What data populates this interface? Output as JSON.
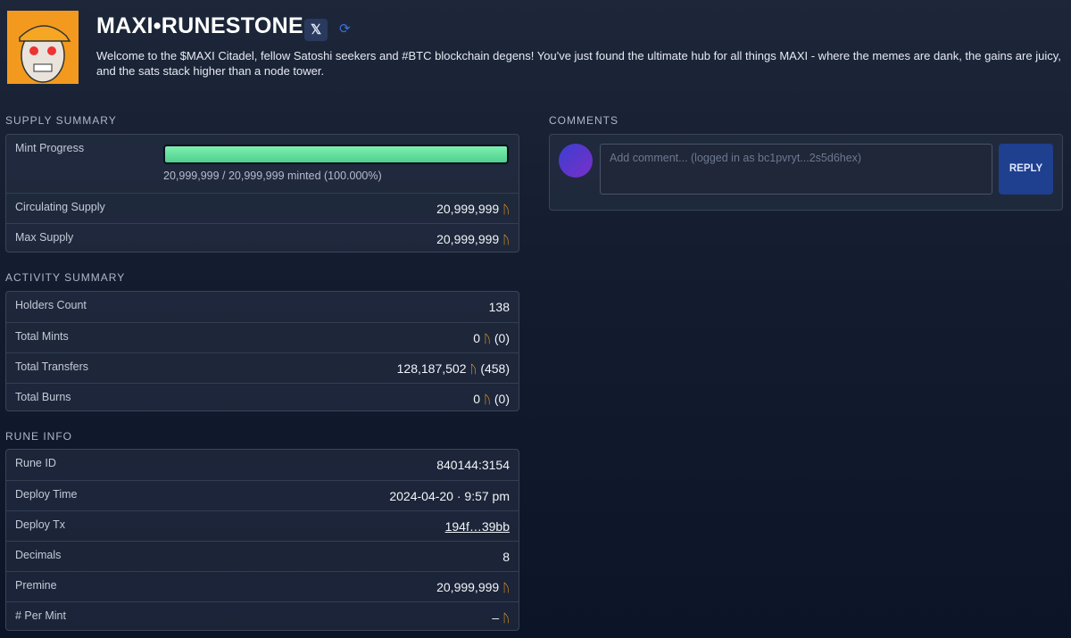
{
  "header": {
    "title": "MAXI•RUNESTONE",
    "description": "Welcome to the $MAXI Citadel, fellow Satoshi seekers and #BTC blockchain degens! You've just found the ultimate hub for all things MAXI - where the memes are dank, the gains are juicy, and the sats stack higher than a node tower."
  },
  "rune_symbol": "ᚢ",
  "supply_summary": {
    "title": "SUPPLY SUMMARY",
    "mint_progress": {
      "label": "Mint Progress",
      "text": "20,999,999 / 20,999,999 minted (100.000%)"
    },
    "rows": [
      {
        "label": "Circulating Supply",
        "value": "20,999,999",
        "symbol": true
      },
      {
        "label": "Max Supply",
        "value": "20,999,999",
        "symbol": true
      }
    ]
  },
  "activity_summary": {
    "title": "ACTIVITY SUMMARY",
    "rows": [
      {
        "label": "Holders Count",
        "value": "138",
        "symbol": false
      },
      {
        "label": "Total Mints",
        "value": "0",
        "symbol": true,
        "count": "(0)"
      },
      {
        "label": "Total Transfers",
        "value": "128,187,502",
        "symbol": true,
        "count": "(458)"
      },
      {
        "label": "Total Burns",
        "value": "0",
        "symbol": true,
        "count": "(0)"
      }
    ]
  },
  "rune_info": {
    "title": "RUNE INFO",
    "rows": [
      {
        "label": "Rune ID",
        "value": "840144:3154",
        "symbol": false
      },
      {
        "label": "Deploy Time",
        "value": "2024-04-20 · 9:57 pm",
        "symbol": false
      },
      {
        "label": "Deploy Tx",
        "value": "194f…39bb",
        "symbol": false,
        "link": true
      },
      {
        "label": "Decimals",
        "value": "8",
        "symbol": false
      },
      {
        "label": "Premine",
        "value": "20,999,999",
        "symbol": true
      },
      {
        "label": "# Per Mint",
        "value": "–",
        "symbol": true
      }
    ]
  },
  "comments": {
    "title": "COMMENTS",
    "placeholder": "Add comment... (logged in as bc1pvryt...2s5d6hex)",
    "button": "REPLY"
  }
}
